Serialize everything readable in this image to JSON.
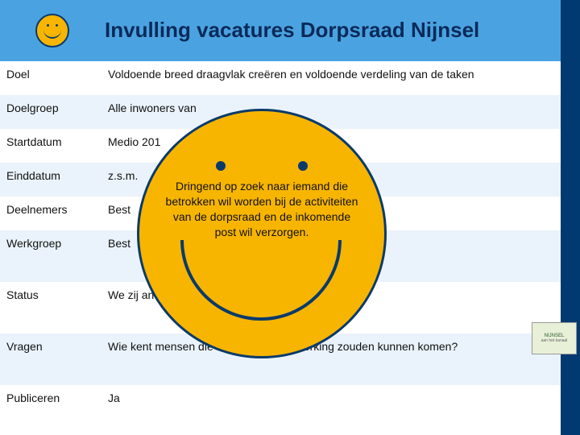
{
  "colors": {
    "header_bg": "#4aa3e0",
    "header_text": "#0a2a5a",
    "right_bar": "#003a70",
    "row_alt": "#eaf3fb",
    "smiley_fill": "#f7b500",
    "smiley_stroke": "#0a3a6a"
  },
  "header": {
    "title": "Invulling vacatures Dorpsraad Nijnsel"
  },
  "rows": [
    {
      "label": "Doel",
      "value": "Voldoende breed draagvlak creëren en voldoende verdeling van de taken"
    },
    {
      "label": "Doelgroep",
      "value": "Alle inwoners van"
    },
    {
      "label": "Startdatum",
      "value": "Medio 201"
    },
    {
      "label": "Einddatum",
      "value": "z.s.m."
    },
    {
      "label": "Deelnemers",
      "value": "Best"
    },
    {
      "label": "Werkgroep",
      "value": "Best"
    },
    {
      "label": "Status",
      "value": "We zij                                                              an Marjon over wil"
    },
    {
      "label": "Vragen",
      "value": "Wie kent mensen die hier voor in aanmerking zouden kunnen komen?"
    },
    {
      "label": "Publiceren",
      "value": "Ja"
    }
  ],
  "overlay": {
    "text": "Dringend op zoek naar iemand die betrokken wil worden bij de activiteiten van de dorpsraad en de inkomende post wil verzorgen."
  },
  "logo": {
    "line1": "NIJNSEL",
    "line2": "aan het kanaal"
  }
}
